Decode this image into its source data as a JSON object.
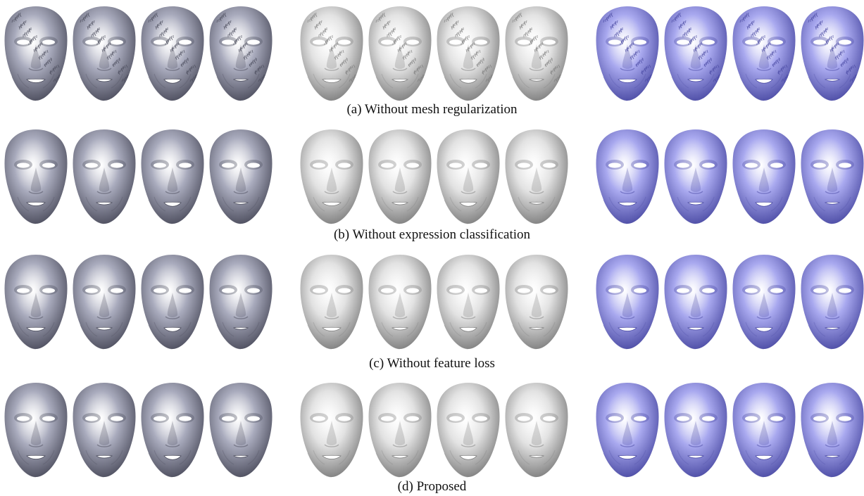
{
  "figure": {
    "rows": [
      {
        "caption": "(a) Without mesh regularization",
        "style": "noisy"
      },
      {
        "caption": "(b) Without expression classification",
        "style": "smooth"
      },
      {
        "caption": "(c) Without feature loss",
        "style": "smooth"
      },
      {
        "caption": "(d) Proposed",
        "style": "smooth"
      }
    ],
    "groups": [
      {
        "tone": "gray",
        "base_color": "#a9abbd",
        "shadow_color": "#4b4c5c"
      },
      {
        "tone": "light",
        "base_color": "#e2e2e2",
        "shadow_color": "#7d7d7d"
      },
      {
        "tone": "blue",
        "base_color": "#a9a9ef",
        "shadow_color": "#4a4aa3"
      }
    ],
    "faces_per_group": 4
  }
}
